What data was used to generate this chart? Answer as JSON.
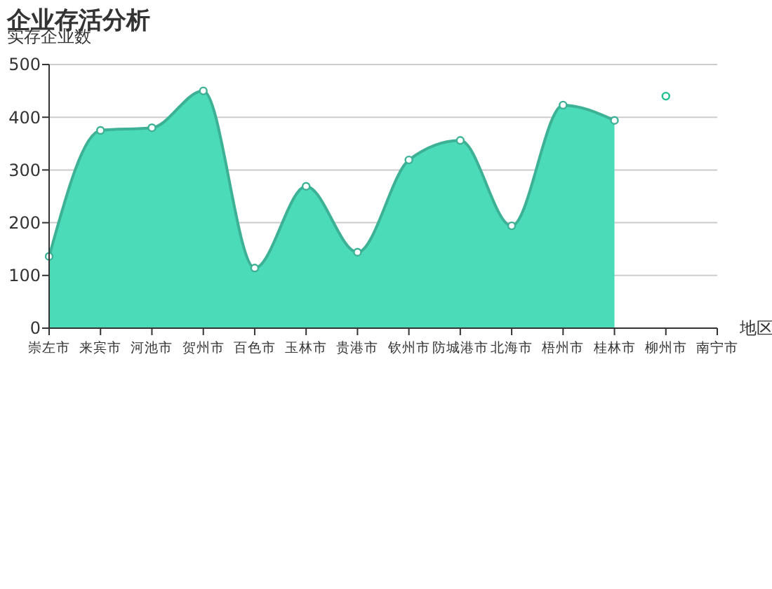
{
  "chart_data": {
    "type": "area",
    "title": "企业存活分析",
    "ylabel": "实存企业数",
    "xlabel": "地区",
    "categories": [
      "崇左市",
      "来宾市",
      "河池市",
      "贺州市",
      "百色市",
      "玉林市",
      "贵港市",
      "钦州市",
      "防城港市",
      "北海市",
      "梧州市",
      "桂林市",
      "柳州市",
      "南宁市"
    ],
    "series": [
      {
        "color": "#4cdbb8",
        "values": [
          136,
          375,
          380,
          450,
          114,
          269,
          144,
          319,
          356,
          194,
          423,
          394,
          null,
          null
        ]
      },
      {
        "type": "scatter",
        "color": "#1fbf8f",
        "values": [
          null,
          null,
          null,
          null,
          null,
          null,
          null,
          null,
          null,
          null,
          null,
          null,
          440,
          null
        ]
      }
    ],
    "ylim": [
      0,
      500
    ],
    "yticks": [
      0,
      100,
      200,
      300,
      400,
      500
    ],
    "grid": "y",
    "marker": "circle"
  }
}
